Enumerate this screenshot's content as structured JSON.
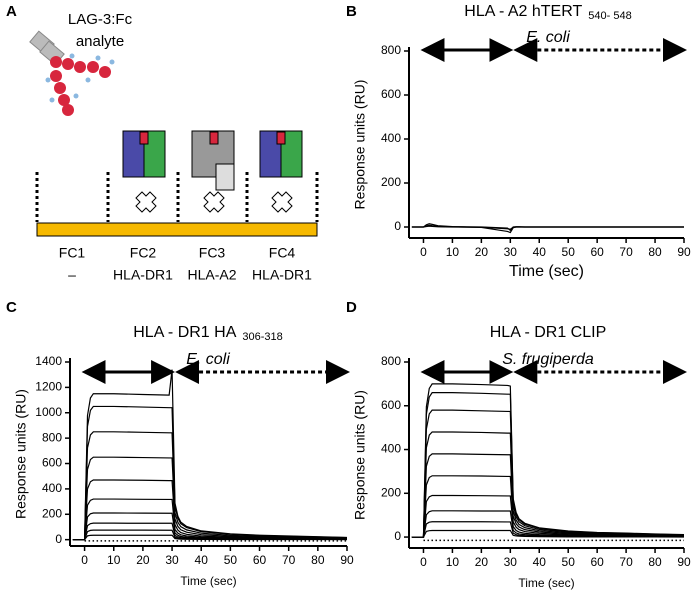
{
  "diagram": {
    "panel": "A",
    "molecule_label": "LAG-3:Fc",
    "molecule_sublabel": "analyte",
    "cells": [
      {
        "label": "FC1",
        "ligand": "–"
      },
      {
        "label": "FC2",
        "ligand": "HLA-DR1"
      },
      {
        "label": "FC3",
        "ligand": "HLA-A2"
      },
      {
        "label": "FC4",
        "ligand": "HLA-DR1"
      }
    ]
  },
  "chart_data": [
    {
      "type": "line",
      "panel": "B",
      "title": "HLA - A2 hTERT",
      "title_subscript": "540- 548",
      "subtitle": "E. coli",
      "x_label": "Time (sec)",
      "y_label": "Response units (RU)",
      "xlim": [
        -5,
        90
      ],
      "ylim": [
        -50,
        800
      ],
      "xticks": [
        0,
        10,
        20,
        30,
        40,
        50,
        60,
        70,
        80,
        90
      ],
      "yticks": [
        0,
        200,
        400,
        600,
        800
      ],
      "x": [
        -4,
        0,
        1,
        2,
        3,
        5,
        10,
        20,
        29,
        30,
        31,
        32,
        33,
        35,
        40,
        50,
        60,
        70,
        80,
        90
      ],
      "series": [
        {
          "color": "#000000",
          "values": [
            0,
            0,
            10,
            15,
            12,
            6,
            2,
            0,
            -5,
            -15,
            0,
            1,
            1,
            0,
            0,
            0,
            0,
            0,
            0,
            0
          ]
        },
        {
          "color": "#000000",
          "values": [
            0,
            0,
            5,
            8,
            6,
            3,
            1,
            -2,
            -20,
            -25,
            -3,
            0,
            0,
            0,
            0,
            0,
            0,
            0,
            0,
            0
          ]
        },
        {
          "color": "#000000",
          "values": [
            0,
            0,
            2,
            4,
            3,
            1,
            0,
            -1,
            -8,
            -10,
            -1,
            0,
            0,
            0,
            0,
            0,
            0,
            0,
            0,
            0
          ]
        }
      ]
    },
    {
      "type": "line",
      "panel": "C",
      "title": "HLA - DR1 HA",
      "title_subscript": "306-318",
      "subtitle": "E. coli",
      "x_label": "Time (sec)",
      "y_label": "Response units (RU)",
      "xlim": [
        -5,
        90
      ],
      "ylim": [
        -50,
        1400
      ],
      "xticks": [
        0,
        10,
        20,
        30,
        40,
        50,
        60,
        70,
        80,
        90
      ],
      "yticks": [
        0,
        200,
        400,
        600,
        800,
        1000,
        1200,
        1400
      ],
      "x": [
        -4,
        0,
        1,
        2,
        3,
        5,
        10,
        20,
        29,
        30,
        31,
        32,
        33,
        35,
        40,
        50,
        60,
        70,
        80,
        90
      ],
      "series": [
        {
          "color": "#000000",
          "values": [
            0,
            0,
            978,
            1116,
            1150,
            1150,
            1150,
            1144,
            1139,
            1340,
            288,
            184,
            138,
            104,
            69,
            46,
            35,
            29,
            23,
            17
          ]
        },
        {
          "color": "#000000",
          "values": [
            0,
            0,
            893,
            1019,
            1050,
            1050,
            1050,
            1045,
            1040,
            1040,
            263,
            168,
            126,
            95,
            63,
            42,
            32,
            26,
            21,
            16
          ]
        },
        {
          "color": "#000000",
          "values": [
            0,
            0,
            723,
            825,
            850,
            850,
            850,
            846,
            842,
            842,
            213,
            136,
            102,
            77,
            51,
            34,
            26,
            21,
            17,
            13
          ]
        },
        {
          "color": "#000000",
          "values": [
            0,
            0,
            553,
            631,
            650,
            650,
            650,
            647,
            644,
            644,
            163,
            104,
            78,
            59,
            39,
            26,
            20,
            16,
            13,
            10
          ]
        },
        {
          "color": "#000000",
          "values": [
            0,
            0,
            400,
            456,
            470,
            470,
            470,
            468,
            465,
            465,
            118,
            75,
            56,
            42,
            28,
            19,
            14,
            12,
            9,
            7
          ]
        },
        {
          "color": "#000000",
          "values": [
            0,
            0,
            272,
            310,
            320,
            320,
            320,
            318,
            317,
            317,
            80,
            51,
            38,
            29,
            19,
            13,
            10,
            8,
            6,
            5
          ]
        },
        {
          "color": "#000000",
          "values": [
            0,
            0,
            179,
            204,
            210,
            210,
            210,
            209,
            208,
            208,
            53,
            34,
            25,
            19,
            13,
            8,
            6,
            5,
            4,
            3
          ]
        },
        {
          "color": "#000000",
          "values": [
            0,
            0,
            111,
            126,
            130,
            130,
            130,
            129,
            129,
            129,
            33,
            21,
            16,
            12,
            8,
            5,
            4,
            3,
            3,
            2
          ]
        },
        {
          "color": "#000000",
          "values": [
            0,
            0,
            64,
            73,
            75,
            75,
            75,
            75,
            74,
            74,
            19,
            12,
            9,
            7,
            5,
            3,
            2,
            2,
            2,
            1
          ]
        },
        {
          "color": "#000000",
          "values": [
            0,
            0,
            30,
            34,
            35,
            35,
            35,
            35,
            35,
            35,
            9,
            6,
            4,
            3,
            2,
            1,
            1,
            1,
            1,
            1
          ]
        },
        {
          "color": "#000000",
          "dotted": true,
          "values": [
            null,
            -10,
            -10,
            -10,
            -10,
            -10,
            -10,
            -10,
            -10,
            -10,
            -10,
            -10,
            -10,
            -10,
            -10,
            -10,
            -10,
            -10,
            -10,
            -10
          ]
        }
      ]
    },
    {
      "type": "line",
      "panel": "D",
      "title": "HLA - DR1 CLIP",
      "subtitle": "S.  frugiperda",
      "x_label": "Time (sec)",
      "y_label": "Response units (RU)",
      "xlim": [
        -5,
        90
      ],
      "ylim": [
        -50,
        800
      ],
      "xticks": [
        0,
        10,
        20,
        30,
        40,
        50,
        60,
        70,
        80,
        90
      ],
      "yticks": [
        0,
        200,
        400,
        600,
        800
      ],
      "x": [
        -4,
        0,
        1,
        2,
        3,
        5,
        10,
        20,
        29,
        30,
        31,
        32,
        33,
        35,
        40,
        50,
        60,
        70,
        80,
        90
      ],
      "series": [
        {
          "color": "#000000",
          "values": [
            0,
            0,
            595,
            679,
            700,
            700,
            700,
            697,
            693,
            690,
            175,
            112,
            84,
            63,
            42,
            28,
            21,
            18,
            14,
            11
          ]
        },
        {
          "color": "#000000",
          "values": [
            0,
            0,
            561,
            640,
            660,
            660,
            660,
            657,
            653,
            653,
            165,
            106,
            79,
            59,
            40,
            26,
            20,
            17,
            13,
            10
          ]
        },
        {
          "color": "#000000",
          "values": [
            0,
            0,
            493,
            563,
            580,
            580,
            580,
            577,
            574,
            574,
            145,
            93,
            70,
            52,
            35,
            23,
            17,
            15,
            12,
            9
          ]
        },
        {
          "color": "#000000",
          "values": [
            0,
            0,
            408,
            466,
            480,
            480,
            480,
            478,
            475,
            475,
            120,
            77,
            58,
            43,
            29,
            19,
            14,
            12,
            10,
            7
          ]
        },
        {
          "color": "#000000",
          "values": [
            0,
            0,
            323,
            369,
            380,
            380,
            380,
            378,
            376,
            376,
            95,
            61,
            46,
            34,
            23,
            15,
            11,
            10,
            8,
            6
          ]
        },
        {
          "color": "#000000",
          "values": [
            0,
            0,
            238,
            272,
            280,
            280,
            280,
            279,
            277,
            277,
            70,
            45,
            34,
            25,
            17,
            11,
            8,
            7,
            6,
            4
          ]
        },
        {
          "color": "#000000",
          "values": [
            0,
            0,
            162,
            184,
            190,
            190,
            190,
            189,
            188,
            188,
            48,
            30,
            23,
            17,
            11,
            8,
            6,
            5,
            4,
            3
          ]
        },
        {
          "color": "#000000",
          "values": [
            0,
            0,
            102,
            116,
            120,
            120,
            120,
            119,
            119,
            119,
            30,
            19,
            14,
            11,
            7,
            5,
            4,
            3,
            2,
            2
          ]
        },
        {
          "color": "#000000",
          "values": [
            0,
            0,
            60,
            68,
            70,
            70,
            70,
            70,
            69,
            69,
            18,
            11,
            8,
            6,
            4,
            3,
            2,
            2,
            1,
            1
          ]
        },
        {
          "color": "#000000",
          "values": [
            0,
            0,
            26,
            29,
            30,
            30,
            30,
            30,
            30,
            30,
            8,
            5,
            4,
            3,
            2,
            1,
            1,
            1,
            1,
            0
          ]
        },
        {
          "color": "#000000",
          "dotted": true,
          "values": [
            null,
            -15,
            -15,
            -15,
            -15,
            -15,
            -15,
            -15,
            -15,
            -15,
            -15,
            -15,
            -15,
            -15,
            -15,
            -15,
            -15,
            -15,
            -15,
            -15
          ]
        }
      ]
    }
  ]
}
